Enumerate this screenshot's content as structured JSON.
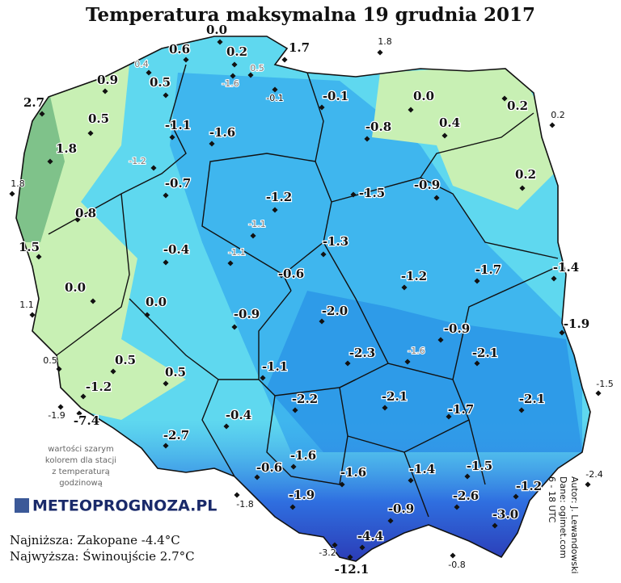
{
  "title": "Temperatura maksymalna 19 grudnia 2017",
  "stations": [
    {
      "value": "0.0"
    },
    {
      "value": "0.6"
    },
    {
      "value": "0.2"
    },
    {
      "value": "1.7"
    },
    {
      "value": "1.8"
    },
    {
      "value": "0.4"
    },
    {
      "value": "0.5"
    },
    {
      "value": "-1.6"
    },
    {
      "value": "0.9"
    },
    {
      "value": "0.5"
    },
    {
      "value": "-0.1"
    },
    {
      "value": "-0.1"
    },
    {
      "value": "0.0"
    },
    {
      "value": "0.2"
    },
    {
      "value": "0.2"
    },
    {
      "value": "2.7"
    },
    {
      "value": "0.5"
    },
    {
      "value": "-1.1"
    },
    {
      "value": "-1.6"
    },
    {
      "value": "-0.8"
    },
    {
      "value": "0.4"
    },
    {
      "value": "1.8"
    },
    {
      "value": "-1.2"
    },
    {
      "value": "1.8"
    },
    {
      "value": "-0.7"
    },
    {
      "value": "0.2"
    },
    {
      "value": "-1.2"
    },
    {
      "value": "-1.5"
    },
    {
      "value": "-0.9"
    },
    {
      "value": "0.8"
    },
    {
      "value": "-1.1"
    },
    {
      "value": "-1.3"
    },
    {
      "value": "1.5"
    },
    {
      "value": "-0.4"
    },
    {
      "value": "-1.1"
    },
    {
      "value": "-0.6"
    },
    {
      "value": "-1.2"
    },
    {
      "value": "-1.7"
    },
    {
      "value": "-1.4"
    },
    {
      "value": "0.0"
    },
    {
      "value": "0.0"
    },
    {
      "value": "1.1"
    },
    {
      "value": "-0.9"
    },
    {
      "value": "-2.0"
    },
    {
      "value": "-1.9"
    },
    {
      "value": "-0.9"
    },
    {
      "value": "-2.3"
    },
    {
      "value": "-1.6"
    },
    {
      "value": "-2.1"
    },
    {
      "value": "0.5"
    },
    {
      "value": "0.5"
    },
    {
      "value": "0.5"
    },
    {
      "value": "-1.1"
    },
    {
      "value": "-1.5"
    },
    {
      "value": "-1.2"
    },
    {
      "value": "-2.2"
    },
    {
      "value": "-2.1"
    },
    {
      "value": "-1.7"
    },
    {
      "value": "-2.1"
    },
    {
      "value": "-1.9"
    },
    {
      "value": "-7.4"
    },
    {
      "value": "-0.4"
    },
    {
      "value": "-2.7"
    },
    {
      "value": "-1.6"
    },
    {
      "value": "-0.6"
    },
    {
      "value": "-1.6"
    },
    {
      "value": "-1.4"
    },
    {
      "value": "-1.5"
    },
    {
      "value": "-2.4"
    },
    {
      "value": "-2.6"
    },
    {
      "value": "-1.2"
    },
    {
      "value": "-1.8"
    },
    {
      "value": "-1.9"
    },
    {
      "value": "-0.9"
    },
    {
      "value": "-3.0"
    },
    {
      "value": "-4.4"
    },
    {
      "value": "-3.2"
    },
    {
      "value": "-12.1"
    },
    {
      "value": "-0.8"
    }
  ],
  "note": [
    "wartości szarym",
    "kolorem dla stacji",
    "z temperaturą",
    "godzinową"
  ],
  "logo": "METEOPROGNOZA.PL",
  "summary": [
    "Najniższa: Zakopane -4.4°C",
    "Najwyższa: Świnoujście 2.7°C"
  ],
  "credits": [
    "Autor: J. Lewandowski",
    "Dane: ogimet.com",
    "6 - 18 UTC"
  ]
}
